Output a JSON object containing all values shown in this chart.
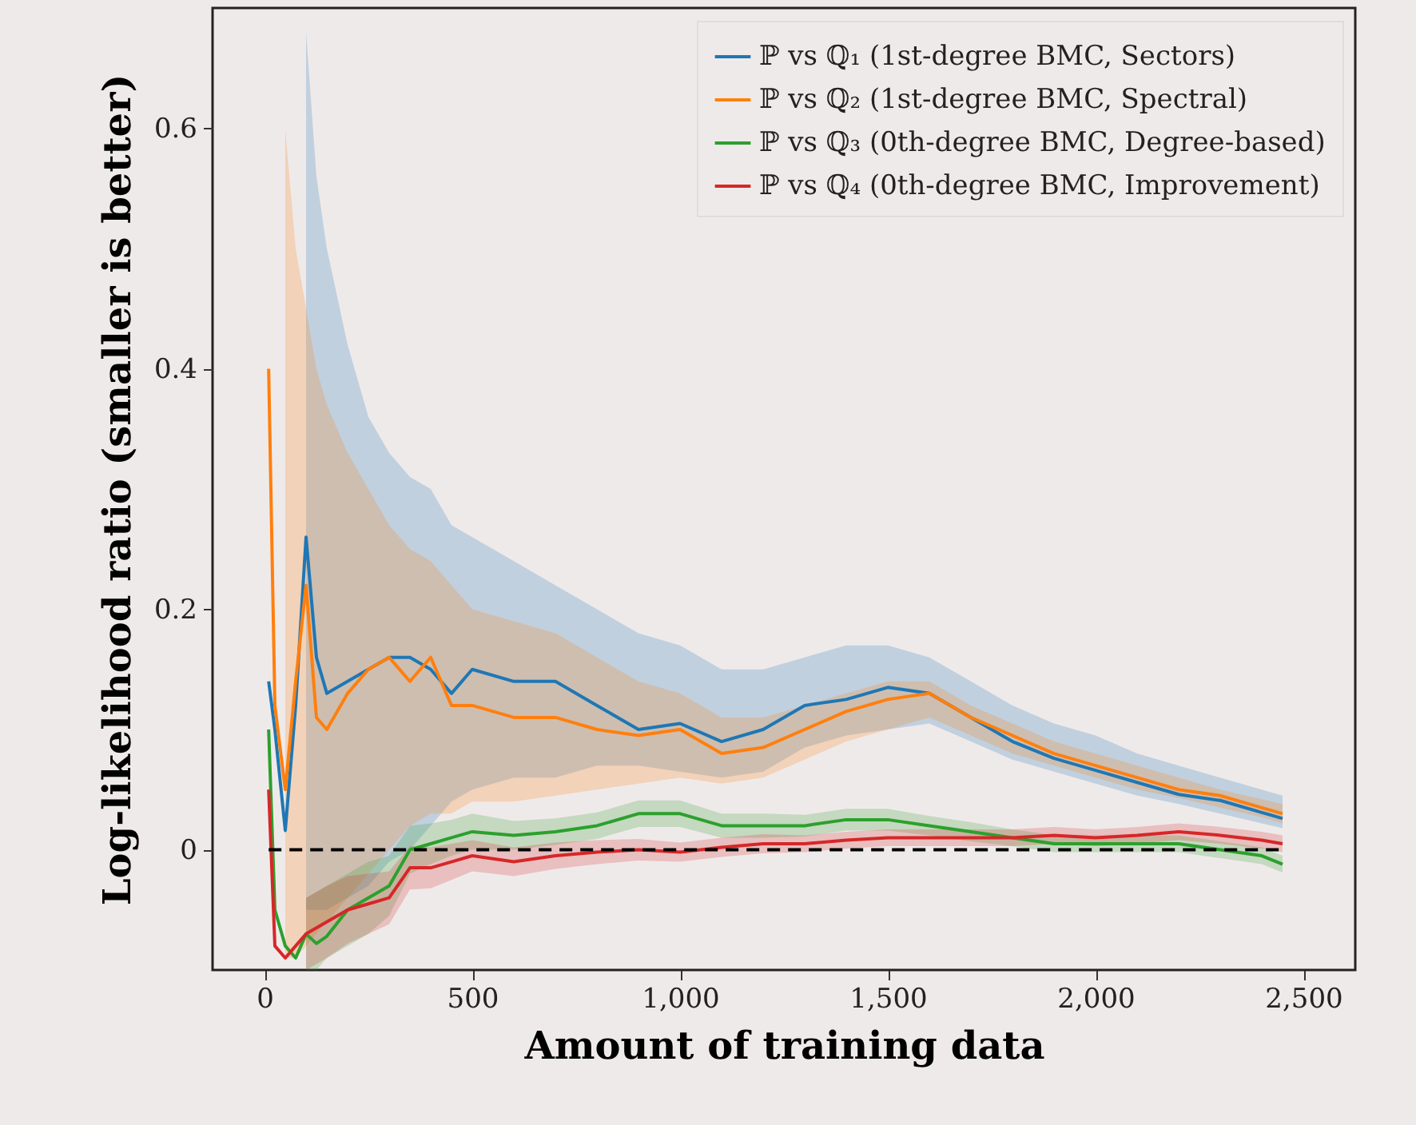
{
  "chart_data": {
    "type": "line",
    "xlabel": "Amount of training data",
    "ylabel": "Log-likelihood ratio (smaller is better)",
    "x": [
      10,
      25,
      50,
      75,
      100,
      125,
      150,
      200,
      250,
      300,
      350,
      400,
      450,
      500,
      600,
      700,
      800,
      900,
      1000,
      1100,
      1200,
      1300,
      1400,
      1500,
      1600,
      1700,
      1800,
      1900,
      2000,
      2100,
      2200,
      2300,
      2400,
      2450
    ],
    "series": [
      {
        "name": "ℙ vs ℚ₁ (1st-degree BMC, Sectors)",
        "color": "#1f77b4",
        "values": [
          0.14,
          0.1,
          0.016,
          0.12,
          0.26,
          0.16,
          0.13,
          0.14,
          0.15,
          0.16,
          0.16,
          0.15,
          0.13,
          0.15,
          0.14,
          0.14,
          0.12,
          0.1,
          0.105,
          0.09,
          0.1,
          0.12,
          0.125,
          0.135,
          0.13,
          0.11,
          0.09,
          0.076,
          0.066,
          0.056,
          0.046,
          0.041,
          0.031,
          0.026
        ],
        "lower": [
          null,
          null,
          null,
          null,
          -0.05,
          -0.05,
          -0.05,
          -0.04,
          -0.03,
          -0.01,
          0.0,
          0.02,
          0.04,
          0.05,
          0.06,
          0.06,
          0.07,
          0.07,
          0.065,
          0.06,
          0.065,
          0.085,
          0.095,
          0.1,
          0.105,
          0.09,
          0.075,
          0.065,
          0.055,
          0.045,
          0.038,
          0.03,
          0.022,
          0.018
        ],
        "upper": [
          null,
          null,
          null,
          null,
          0.68,
          0.56,
          0.5,
          0.42,
          0.36,
          0.33,
          0.31,
          0.3,
          0.27,
          0.26,
          0.24,
          0.22,
          0.2,
          0.18,
          0.17,
          0.15,
          0.15,
          0.16,
          0.17,
          0.17,
          0.16,
          0.14,
          0.12,
          0.105,
          0.095,
          0.08,
          0.07,
          0.06,
          0.05,
          0.045
        ]
      },
      {
        "name": "ℙ vs ℚ₂ (1st-degree BMC, Spectral)",
        "color": "#ff7f0e",
        "values": [
          0.4,
          0.12,
          0.05,
          0.14,
          0.22,
          0.11,
          0.1,
          0.13,
          0.15,
          0.16,
          0.14,
          0.16,
          0.12,
          0.12,
          0.11,
          0.11,
          0.1,
          0.095,
          0.1,
          0.08,
          0.085,
          0.1,
          0.115,
          0.125,
          0.13,
          0.11,
          0.095,
          0.08,
          0.07,
          0.06,
          0.05,
          0.045,
          0.035,
          0.03
        ],
        "lower": [
          null,
          null,
          -0.09,
          -0.09,
          -0.08,
          -0.07,
          -0.06,
          -0.04,
          -0.02,
          0.0,
          0.02,
          0.03,
          0.03,
          0.04,
          0.04,
          0.045,
          0.05,
          0.055,
          0.06,
          0.055,
          0.06,
          0.075,
          0.09,
          0.1,
          0.11,
          0.095,
          0.08,
          0.07,
          0.06,
          0.05,
          0.043,
          0.035,
          0.027,
          0.022
        ],
        "upper": [
          null,
          null,
          0.6,
          0.5,
          0.45,
          0.4,
          0.37,
          0.33,
          0.3,
          0.27,
          0.25,
          0.24,
          0.22,
          0.2,
          0.19,
          0.18,
          0.16,
          0.14,
          0.13,
          0.11,
          0.11,
          0.12,
          0.13,
          0.14,
          0.14,
          0.12,
          0.105,
          0.09,
          0.08,
          0.07,
          0.06,
          0.05,
          0.042,
          0.038
        ]
      },
      {
        "name": "ℙ vs ℚ₃ (0th-degree BMC, Degree-based)",
        "color": "#2ca02c",
        "values": [
          0.1,
          -0.05,
          -0.08,
          -0.09,
          -0.07,
          -0.078,
          -0.072,
          -0.05,
          -0.04,
          -0.03,
          0.0,
          0.005,
          0.01,
          0.015,
          0.012,
          0.015,
          0.02,
          0.03,
          0.03,
          0.02,
          0.02,
          0.02,
          0.025,
          0.025,
          0.02,
          0.015,
          0.01,
          0.005,
          0.005,
          0.005,
          0.005,
          0.0,
          -0.005,
          -0.012
        ],
        "lower": [
          null,
          null,
          null,
          null,
          -0.1,
          -0.1,
          -0.09,
          -0.08,
          -0.07,
          -0.055,
          -0.02,
          -0.012,
          -0.005,
          0.0,
          0.0,
          0.004,
          0.009,
          0.019,
          0.019,
          0.01,
          0.01,
          0.011,
          0.016,
          0.016,
          0.012,
          0.007,
          0.003,
          -0.002,
          -0.002,
          -0.002,
          -0.002,
          -0.007,
          -0.012,
          -0.019
        ],
        "upper": [
          null,
          null,
          null,
          null,
          -0.04,
          -0.035,
          -0.03,
          -0.02,
          -0.01,
          -0.005,
          0.02,
          0.022,
          0.025,
          0.03,
          0.024,
          0.026,
          0.031,
          0.041,
          0.041,
          0.03,
          0.03,
          0.029,
          0.034,
          0.034,
          0.028,
          0.023,
          0.017,
          0.012,
          0.012,
          0.012,
          0.012,
          0.007,
          0.002,
          -0.005
        ]
      },
      {
        "name": "ℙ vs ℚ₄ (0th-degree BMC, Improvement)",
        "color": "#d62728",
        "values": [
          0.05,
          -0.08,
          -0.09,
          -0.08,
          -0.07,
          -0.065,
          -0.06,
          -0.05,
          -0.045,
          -0.04,
          -0.015,
          -0.015,
          -0.01,
          -0.005,
          -0.01,
          -0.005,
          -0.002,
          0.0,
          -0.002,
          0.002,
          0.005,
          0.005,
          0.008,
          0.01,
          0.01,
          0.01,
          0.01,
          0.012,
          0.01,
          0.012,
          0.015,
          0.012,
          0.008,
          0.005
        ],
        "lower": [
          null,
          null,
          null,
          null,
          -0.1,
          -0.095,
          -0.09,
          -0.078,
          -0.07,
          -0.062,
          -0.033,
          -0.032,
          -0.025,
          -0.018,
          -0.022,
          -0.016,
          -0.012,
          -0.009,
          -0.01,
          -0.006,
          -0.003,
          -0.002,
          0.001,
          0.003,
          0.003,
          0.003,
          0.003,
          0.005,
          0.003,
          0.005,
          0.008,
          0.005,
          0.001,
          -0.002
        ],
        "upper": [
          null,
          null,
          null,
          null,
          -0.04,
          -0.035,
          -0.03,
          -0.022,
          -0.02,
          -0.018,
          0.003,
          0.002,
          0.005,
          0.008,
          0.002,
          0.006,
          0.008,
          0.009,
          0.006,
          0.01,
          0.013,
          0.012,
          0.015,
          0.017,
          0.017,
          0.017,
          0.017,
          0.019,
          0.017,
          0.019,
          0.022,
          0.019,
          0.015,
          0.012
        ]
      }
    ],
    "xlim": [
      -125,
      2625
    ],
    "ylim": [
      -0.1,
      0.7
    ],
    "xticks": [
      0,
      500,
      {
        "value": 1000,
        "label": "1,000"
      },
      {
        "value": 1500,
        "label": "1,500"
      },
      {
        "value": 2000,
        "label": "2,000"
      },
      {
        "value": 2500,
        "label": "2,500"
      }
    ],
    "yticks": [
      0,
      0.2,
      0.4,
      0.6
    ],
    "ref_lines": [
      {
        "axis": "y",
        "value": 0,
        "color": "#000000",
        "line_style": "dashed"
      }
    ],
    "legend": "top right",
    "grid": false,
    "line_style": "solid",
    "marker": "none"
  }
}
